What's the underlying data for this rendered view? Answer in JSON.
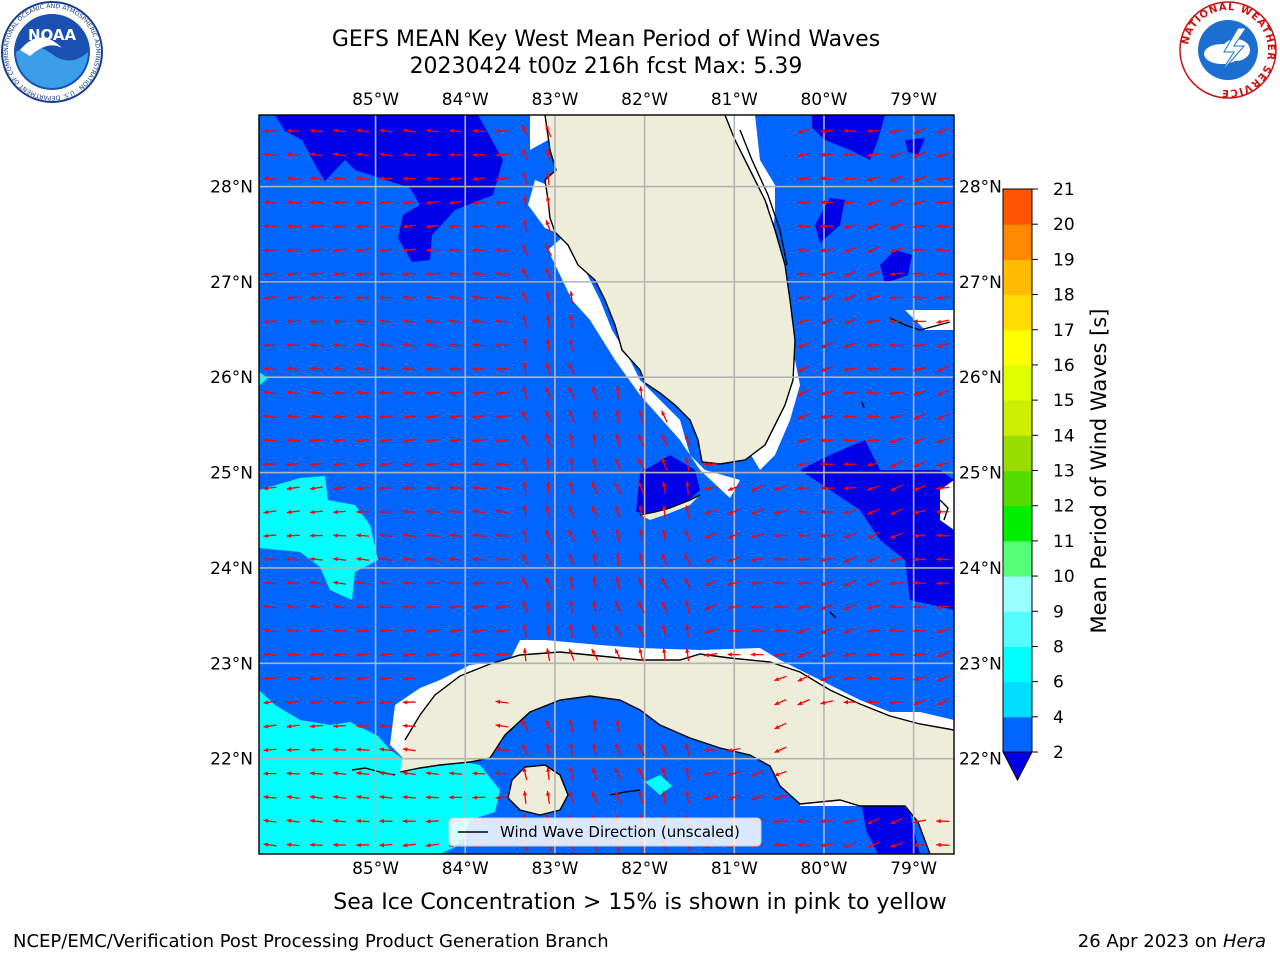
{
  "title": {
    "line1": "GEFS MEAN Key West Mean Period of Wind Waves",
    "line2": "20230424 t00z 216h fcst   Max: 5.39"
  },
  "map": {
    "lon_labels": [
      "85°W",
      "84°W",
      "83°W",
      "82°W",
      "81°W",
      "80°W",
      "79°W"
    ],
    "lat_labels": [
      "28°N",
      "27°N",
      "26°N",
      "25°N",
      "24°N",
      "23°N",
      "22°N"
    ],
    "legend": "Wind Wave Direction (unscaled)",
    "colors": {
      "ocean_2_4": "#0066ff",
      "ocean_0_2": "#0000e6",
      "ocean_4_6": "#00ffff",
      "land": "#eeedda",
      "gridline": "#b4b4b4",
      "arrow": "#ff0000",
      "coast": "#000000"
    }
  },
  "colorbar": {
    "label": "Mean Period of Wind Waves [s]",
    "ticks": [
      "2",
      "4",
      "6",
      "8",
      "9",
      "10",
      "11",
      "12",
      "13",
      "14",
      "15",
      "16",
      "17",
      "18",
      "19",
      "20",
      "21"
    ],
    "colors": [
      "#0066ff",
      "#00ddff",
      "#00ffff",
      "#55ffff",
      "#99ffff",
      "#55ff77",
      "#00ee00",
      "#55dd00",
      "#99dd00",
      "#ccee00",
      "#ddff00",
      "#ffff00",
      "#ffdd00",
      "#ffbb00",
      "#ff8800",
      "#ff5500",
      "#ff2200",
      "#ff0000"
    ]
  },
  "note": "Sea Ice Concentration > 15% is shown in pink to yellow",
  "footer": {
    "left": "NCEP/EMC/Verification Post Processing Product Generation Branch",
    "date": "26 Apr 2023 on ",
    "host": "Hera"
  },
  "logos": {
    "noaa_text": "NOAA",
    "noaa_ring": "NATIONAL OCEANIC AND ATMOSPHERIC ADMINISTRATION · U.S. DEPARTMENT OF COMMERCE",
    "nws_ring": "NATIONAL WEATHER SERVICE"
  }
}
